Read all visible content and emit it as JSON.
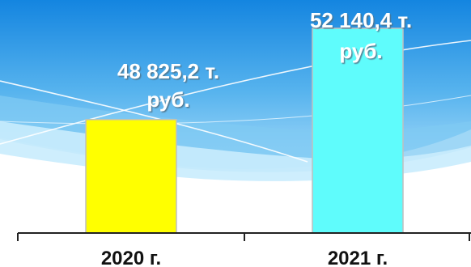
{
  "chart_data": {
    "type": "bar",
    "categories": [
      "2020 г.",
      "2021 г."
    ],
    "values": [
      48825.2,
      52140.4
    ],
    "data_labels": [
      [
        "48 825,2  т.",
        "руб."
      ],
      [
        "52 140,4 т.",
        "руб."
      ]
    ],
    "title": "",
    "xlabel": "",
    "ylabel": "",
    "grid": false,
    "legend": "none"
  },
  "colors": {
    "bars": [
      "#ffff00",
      "#5ffcfc"
    ],
    "bar_outline": "#bfbfbf",
    "label_text": "#ffffff",
    "label_shadow": "#5a7f95",
    "axis": "#222222",
    "background_top": "#1485e0",
    "background_bottom": "#dff4fe"
  }
}
